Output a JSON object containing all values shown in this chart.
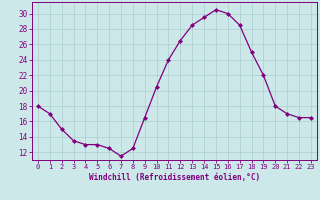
{
  "x": [
    0,
    1,
    2,
    3,
    4,
    5,
    6,
    7,
    8,
    9,
    10,
    11,
    12,
    13,
    14,
    15,
    16,
    17,
    18,
    19,
    20,
    21,
    22,
    23
  ],
  "y": [
    18,
    17,
    15,
    13.5,
    13,
    13,
    12.5,
    11.5,
    12.5,
    16.5,
    20.5,
    24,
    26.5,
    28.5,
    29.5,
    30.5,
    30,
    28.5,
    25,
    22,
    18,
    17,
    16.5,
    16.5
  ],
  "line_color": "#800080",
  "marker": "D",
  "marker_size": 2,
  "bg_color": "#cce8e8",
  "grid_color": "#aacece",
  "xlabel": "Windchill (Refroidissement éolien,°C)",
  "xlabel_color": "#800080",
  "ylim": [
    11,
    31.5
  ],
  "yticks": [
    12,
    14,
    16,
    18,
    20,
    22,
    24,
    26,
    28,
    30
  ],
  "xlim": [
    -0.5,
    23.5
  ],
  "xticks": [
    0,
    1,
    2,
    3,
    4,
    5,
    6,
    7,
    8,
    9,
    10,
    11,
    12,
    13,
    14,
    15,
    16,
    17,
    18,
    19,
    20,
    21,
    22,
    23
  ],
  "tick_color": "#800080",
  "spine_color": "#800080"
}
